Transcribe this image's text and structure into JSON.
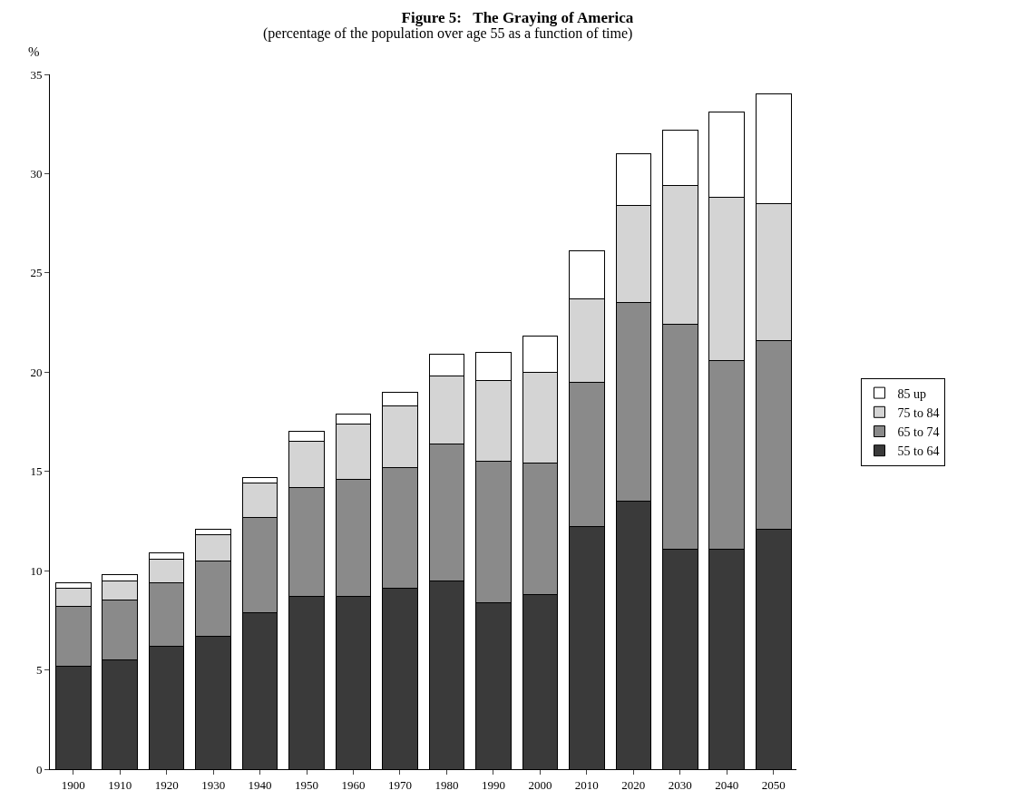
{
  "chart_data": {
    "type": "bar",
    "stacked": true,
    "title": "Figure 5:   The Graying of America",
    "subtitle": "(percentage of the population over age 55 as a function of time)",
    "ylabel": "%",
    "categories": [
      "1900",
      "1910",
      "1920",
      "1930",
      "1940",
      "1950",
      "1960",
      "1970",
      "1980",
      "1990",
      "2000",
      "2010",
      "2020",
      "2030",
      "2040",
      "2050"
    ],
    "series": [
      {
        "name": "55 to 64",
        "color": "#3a3a3a",
        "values": [
          5.2,
          5.5,
          6.2,
          6.7,
          7.9,
          8.7,
          8.7,
          9.1,
          9.5,
          8.4,
          8.8,
          12.2,
          13.5,
          11.1,
          11.1,
          12.1
        ]
      },
      {
        "name": "65 to 74",
        "color": "#8a8a8a",
        "values": [
          3.0,
          3.0,
          3.2,
          3.8,
          4.8,
          5.5,
          5.9,
          6.1,
          6.9,
          7.1,
          6.6,
          7.3,
          10.0,
          11.3,
          9.5,
          9.5
        ]
      },
      {
        "name": "75 to 84",
        "color": "#d4d4d4",
        "values": [
          0.9,
          1.0,
          1.2,
          1.3,
          1.7,
          2.3,
          2.8,
          3.1,
          3.4,
          4.1,
          4.6,
          4.2,
          4.9,
          7.0,
          8.2,
          6.9
        ]
      },
      {
        "name": "85 up",
        "color": "#ffffff",
        "values": [
          0.3,
          0.3,
          0.3,
          0.3,
          0.3,
          0.5,
          0.5,
          0.7,
          1.1,
          1.4,
          1.8,
          2.4,
          2.6,
          2.8,
          4.3,
          5.5
        ]
      }
    ],
    "ylim": [
      0,
      35
    ],
    "yticks": [
      0,
      5,
      10,
      15,
      20,
      25,
      30,
      35
    ],
    "grid": false,
    "legend": "right"
  }
}
